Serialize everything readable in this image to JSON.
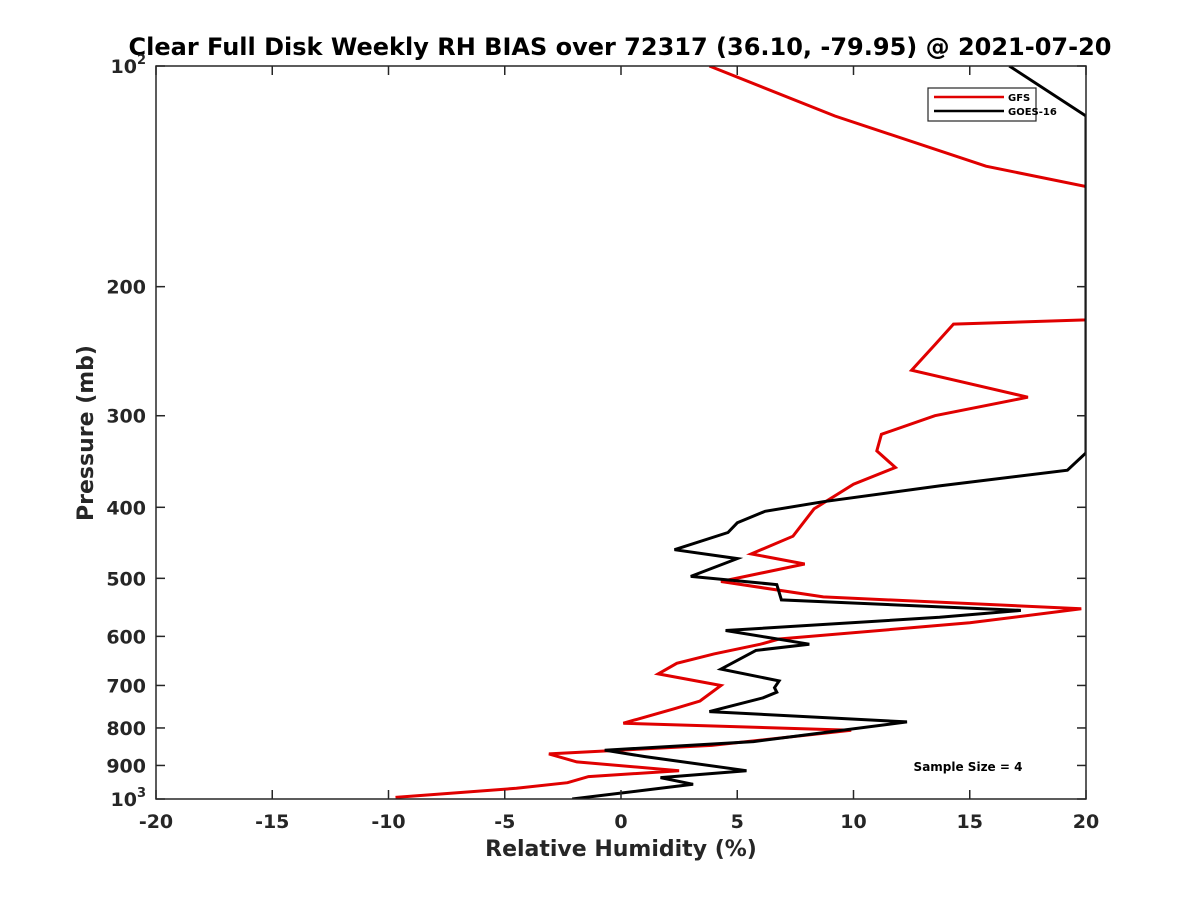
{
  "chart_data": {
    "type": "line",
    "title": "Clear Full Disk Weekly RH BIAS over 72317 (36.10, -79.95) @ 2021-07-20",
    "xlabel": "Relative Humidity (%)",
    "ylabel": "Pressure (mb)",
    "xlim": [
      -20,
      20
    ],
    "ylim": [
      100,
      1000
    ],
    "yscale": "log",
    "y_reversed": true,
    "x_ticks": [
      -20,
      -15,
      -10,
      -5,
      0,
      5,
      10,
      15,
      20
    ],
    "x_tick_labels": [
      "-20",
      "-15",
      "-10",
      "-5",
      "0",
      "5",
      "10",
      "15",
      "20"
    ],
    "y_ticks": [
      {
        "value": 100,
        "base": "10",
        "exp": "2"
      },
      {
        "value": 200,
        "label": "200"
      },
      {
        "value": 300,
        "label": "300"
      },
      {
        "value": 400,
        "label": "400"
      },
      {
        "value": 500,
        "label": "500"
      },
      {
        "value": 600,
        "label": "600"
      },
      {
        "value": 700,
        "label": "700"
      },
      {
        "value": 800,
        "label": "800"
      },
      {
        "value": 900,
        "label": "900"
      },
      {
        "value": 1000,
        "base": "10",
        "exp": "3"
      }
    ],
    "grid": false,
    "legend_position": "top-right",
    "annotation": "Sample Size = 4",
    "colors": {
      "GFS": "#e00000",
      "GOES-16": "#000000"
    },
    "series": [
      {
        "name": "GFS",
        "color": "#e00000",
        "points": [
          [
            3.8,
            100
          ],
          [
            9.2,
            117
          ],
          [
            15.7,
            137
          ],
          [
            20.0,
            146
          ],
          [
            20.0,
            222
          ],
          [
            14.3,
            225
          ],
          [
            13.5,
            240
          ],
          [
            12.5,
            260
          ],
          [
            17.5,
            283
          ],
          [
            13.5,
            300
          ],
          [
            11.2,
            318
          ],
          [
            11.0,
            335
          ],
          [
            11.8,
            353
          ],
          [
            10.0,
            372
          ],
          [
            8.3,
            402
          ],
          [
            7.4,
            438
          ],
          [
            5.6,
            463
          ],
          [
            7.9,
            478
          ],
          [
            4.3,
            505
          ],
          [
            8.7,
            530
          ],
          [
            19.8,
            550
          ],
          [
            15.0,
            575
          ],
          [
            6.8,
            605
          ],
          [
            6.0,
            615
          ],
          [
            4.0,
            634
          ],
          [
            2.4,
            653
          ],
          [
            1.6,
            675
          ],
          [
            4.3,
            700
          ],
          [
            3.4,
            735
          ],
          [
            2.3,
            753
          ],
          [
            0.1,
            788
          ],
          [
            9.9,
            806
          ],
          [
            3.9,
            845
          ],
          [
            -3.1,
            868
          ],
          [
            -1.9,
            890
          ],
          [
            2.5,
            915
          ],
          [
            -1.4,
            932
          ],
          [
            -2.3,
            950
          ],
          [
            -4.5,
            967
          ],
          [
            -9.7,
            995
          ]
        ]
      },
      {
        "name": "GOES-16",
        "color": "#000000",
        "points": [
          [
            16.7,
            100
          ],
          [
            20.0,
            117
          ],
          [
            20.0,
            337
          ],
          [
            19.2,
            356
          ],
          [
            13.7,
            374
          ],
          [
            8.7,
            393
          ],
          [
            6.2,
            405
          ],
          [
            5.0,
            420
          ],
          [
            4.6,
            433
          ],
          [
            2.3,
            457
          ],
          [
            5.0,
            470
          ],
          [
            3.0,
            497
          ],
          [
            6.7,
            510
          ],
          [
            6.9,
            535
          ],
          [
            17.2,
            553
          ],
          [
            13.7,
            565
          ],
          [
            4.5,
            589
          ],
          [
            8.1,
            615
          ],
          [
            5.8,
            627
          ],
          [
            4.3,
            665
          ],
          [
            6.8,
            690
          ],
          [
            6.6,
            705
          ],
          [
            6.7,
            715
          ],
          [
            6.1,
            728
          ],
          [
            3.8,
            760
          ],
          [
            12.3,
            785
          ],
          [
            5.7,
            835
          ],
          [
            -0.7,
            858
          ],
          [
            1.0,
            875
          ],
          [
            5.4,
            915
          ],
          [
            1.7,
            935
          ],
          [
            3.1,
            955
          ],
          [
            -2.1,
            1000
          ]
        ]
      }
    ]
  }
}
